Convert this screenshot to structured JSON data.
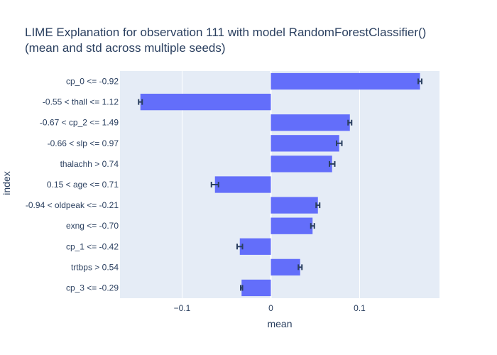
{
  "chart_data": {
    "type": "bar",
    "orientation": "horizontal",
    "title_line1": "LIME Explanation for observation 111 with model RandomForestClassifier()",
    "title_line2": "(mean and std across multiple seeds)",
    "xlabel": "mean",
    "ylabel": "index",
    "xlim": [
      -0.17,
      0.19
    ],
    "xticks": [
      -0.1,
      0,
      0.1
    ],
    "xtick_labels": [
      "−0.1",
      "0",
      "0.1"
    ],
    "grid": true,
    "categories": [
      "cp_0 <= -0.92",
      "-0.55 < thall <= 1.12",
      "-0.67 < cp_2 <= 1.49",
      "-0.66 < slp <= 0.97",
      "thalachh > 0.74",
      "0.15 < age <= 0.71",
      "-0.94 < oldpeak <= -0.21",
      "exng <= -0.70",
      "cp_1 <= -0.42",
      "trtbps > 0.54",
      "cp_3 <= -0.29"
    ],
    "values": [
      0.168,
      -0.147,
      0.089,
      0.077,
      0.069,
      -0.063,
      0.053,
      0.047,
      -0.035,
      0.033,
      -0.033
    ],
    "std": [
      0.002,
      0.002,
      0.002,
      0.003,
      0.003,
      0.004,
      0.002,
      0.002,
      0.003,
      0.002,
      0.001
    ],
    "colors": {
      "bar": "#636efa",
      "plot_bg": "#e5ecf6",
      "grid": "#ffffff",
      "error": "#2a3f5f",
      "text": "#2a3f5f"
    }
  }
}
